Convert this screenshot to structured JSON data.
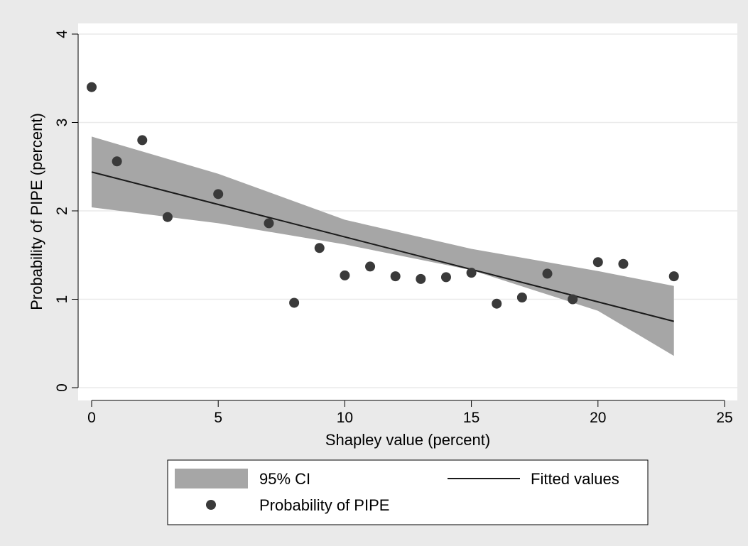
{
  "chart_data": {
    "type": "scatter",
    "xlabel": "Shapley value (percent)",
    "ylabel": "Probability of PIPE (percent)",
    "xlim": [
      0,
      25
    ],
    "ylim": [
      0,
      4
    ],
    "xticks": [
      0,
      5,
      10,
      15,
      20,
      25
    ],
    "yticks": [
      0,
      1,
      2,
      3,
      4
    ],
    "grid": "horizontal",
    "legend_position": "bottom",
    "series": [
      {
        "name": "95% CI",
        "kind": "band",
        "x": [
          0,
          5,
          10,
          15,
          20,
          23
        ],
        "lower": [
          2.04,
          1.86,
          1.62,
          1.33,
          0.87,
          0.36
        ],
        "upper": [
          2.84,
          2.42,
          1.9,
          1.57,
          1.32,
          1.15
        ]
      },
      {
        "name": "Fitted values",
        "kind": "line",
        "x": [
          0,
          23
        ],
        "y": [
          2.44,
          0.75
        ]
      },
      {
        "name": "Probability of PIPE",
        "kind": "scatter",
        "x": [
          0,
          1,
          2,
          3,
          5,
          7,
          8,
          9,
          10,
          11,
          12,
          13,
          14,
          15,
          16,
          17,
          18,
          19,
          20,
          21,
          23
        ],
        "y": [
          3.4,
          2.56,
          2.8,
          1.93,
          2.19,
          1.86,
          0.96,
          1.58,
          1.27,
          1.37,
          1.26,
          1.23,
          1.25,
          1.3,
          0.95,
          1.02,
          1.29,
          1.0,
          1.42,
          1.4,
          1.26
        ]
      }
    ]
  },
  "colors": {
    "outer_background": "#eaeaea",
    "plot_background": "#ffffff",
    "ci_band": "#a6a6a6",
    "fitted_line": "#1a1a1a",
    "marker": "#3a3a3a",
    "gridline": "#eaeaea"
  }
}
